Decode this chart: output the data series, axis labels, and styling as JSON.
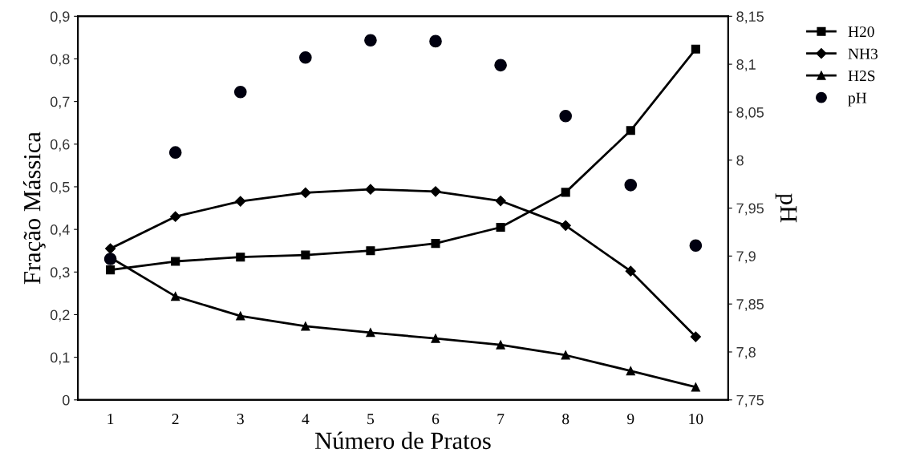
{
  "chart_data": {
    "type": "line",
    "xlabel": "Número de Pratos",
    "ylabel": "Fração Mássica",
    "y2label": "pH",
    "categories": [
      "1",
      "2",
      "3",
      "4",
      "5",
      "6",
      "7",
      "8",
      "9",
      "10"
    ],
    "series": [
      {
        "name": "H20",
        "color": "#000000",
        "marker": "square",
        "values": [
          0.305,
          0.325,
          0.335,
          0.34,
          0.35,
          0.367,
          0.405,
          0.487,
          0.632,
          0.823
        ]
      },
      {
        "name": "NH3",
        "color": "#000000",
        "marker": "diamond",
        "values": [
          0.355,
          0.43,
          0.466,
          0.486,
          0.494,
          0.489,
          0.467,
          0.409,
          0.302,
          0.148
        ]
      },
      {
        "name": "H2S",
        "color": "#000000",
        "marker": "triangle",
        "values": [
          0.334,
          0.243,
          0.197,
          0.173,
          0.158,
          0.144,
          0.129,
          0.105,
          0.068,
          0.03
        ]
      },
      {
        "name": "pH",
        "type": "scatter",
        "axis": "y2",
        "color": "#000010",
        "marker": "circle",
        "values": [
          7.897,
          8.008,
          8.071,
          8.107,
          8.125,
          8.124,
          8.099,
          8.046,
          7.974,
          7.911
        ]
      }
    ],
    "ylim": [
      0,
      0.9
    ],
    "yticks": [
      {
        "value": 0,
        "label": "0"
      },
      {
        "value": 0.1,
        "label": "0,1"
      },
      {
        "value": 0.2,
        "label": "0,2"
      },
      {
        "value": 0.3,
        "label": "0,3"
      },
      {
        "value": 0.4,
        "label": "0,4"
      },
      {
        "value": 0.5,
        "label": "0,5"
      },
      {
        "value": 0.6,
        "label": "0,6"
      },
      {
        "value": 0.7,
        "label": "0,7"
      },
      {
        "value": 0.8,
        "label": "0,8"
      },
      {
        "value": 0.9,
        "label": "0,9"
      }
    ],
    "y2lim": [
      7.75,
      8.15
    ],
    "y2ticks": [
      {
        "value": 7.75,
        "label": "7,75"
      },
      {
        "value": 7.8,
        "label": "7,8"
      },
      {
        "value": 7.85,
        "label": "7,85"
      },
      {
        "value": 7.9,
        "label": "7,9"
      },
      {
        "value": 7.95,
        "label": "7,95"
      },
      {
        "value": 8,
        "label": "8"
      },
      {
        "value": 8.05,
        "label": "8,05"
      },
      {
        "value": 8.1,
        "label": "8,1"
      },
      {
        "value": 8.15,
        "label": "8,15"
      }
    ],
    "grid": false,
    "legend": "right",
    "line_style": "solid"
  }
}
